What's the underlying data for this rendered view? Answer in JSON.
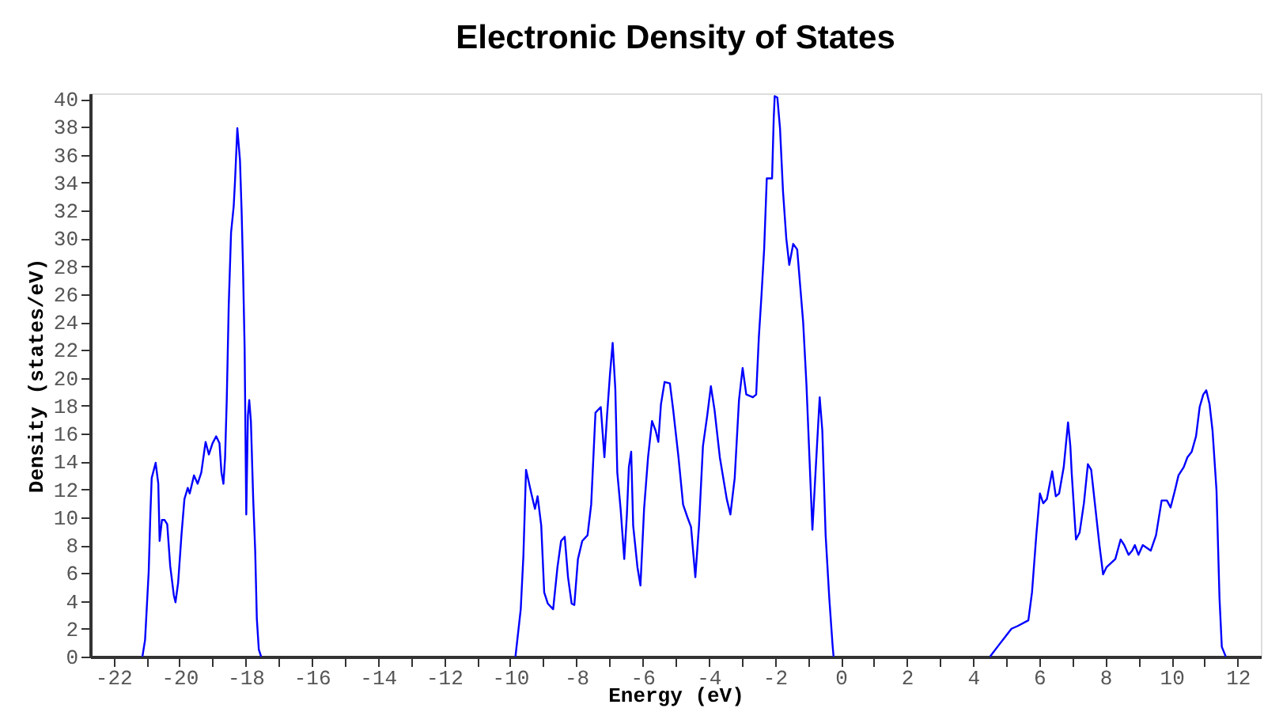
{
  "chart_data": {
    "type": "line",
    "title": "Electronic Density of States",
    "xlabel": "Energy (eV)",
    "ylabel": "Density (states/eV)",
    "xlim": [
      -22.7,
      12.7
    ],
    "ylim": [
      0,
      40.4
    ],
    "xticks": [
      -22,
      {
        "value": -21,
        "label": null
      },
      -20,
      {
        "value": -19,
        "label": null
      },
      -18,
      {
        "value": -17,
        "label": null
      },
      -16,
      {
        "value": -15,
        "label": null
      },
      -14,
      {
        "value": -13,
        "label": null
      },
      -12,
      {
        "value": -11,
        "label": null
      },
      -10,
      {
        "value": -9,
        "label": null
      },
      -8,
      {
        "value": -7,
        "label": null
      },
      -6,
      {
        "value": -5,
        "label": null
      },
      -4,
      {
        "value": -3,
        "label": null
      },
      -2,
      {
        "value": -1,
        "label": null
      },
      0,
      {
        "value": 1,
        "label": null
      },
      2,
      {
        "value": 3,
        "label": null
      },
      4,
      {
        "value": 5,
        "label": null
      },
      6,
      {
        "value": 7,
        "label": null
      },
      8,
      {
        "value": 9,
        "label": null
      },
      10,
      {
        "value": 11,
        "label": null
      },
      12
    ],
    "yticks": [
      0,
      2,
      4,
      6,
      8,
      10,
      12,
      14,
      16,
      18,
      20,
      22,
      24,
      26,
      28,
      30,
      32,
      34,
      36,
      38,
      40
    ],
    "grid": false,
    "legend": false,
    "marker": "none",
    "line_style": "solid",
    "series": [
      {
        "color": "#0000ff",
        "x": [
          -21.12,
          -21.04,
          -20.93,
          -20.88,
          -20.84,
          -20.72,
          -20.64,
          -20.6,
          -20.53,
          -20.45,
          -20.37,
          -20.28,
          -20.17,
          -20.12,
          -20.04,
          -19.94,
          -19.85,
          -19.75,
          -19.69,
          -19.56,
          -19.45,
          -19.34,
          -19.21,
          -19.11,
          -19.0,
          -18.89,
          -18.79,
          -18.73,
          -18.67,
          -18.62,
          -18.57,
          -18.51,
          -18.44,
          -18.36,
          -18.32,
          -18.25,
          -18.17,
          -18.12,
          -18.08,
          -18.03,
          -17.98,
          -17.93,
          -17.89,
          -17.84,
          -17.77,
          -17.71,
          -17.66,
          -17.6,
          -17.53,
          -14,
          -9.84,
          -9.68,
          -9.6,
          -9.52,
          -9.36,
          -9.25,
          -9.17,
          -9.06,
          -8.97,
          -8.86,
          -8.7,
          -8.57,
          -8.46,
          -8.35,
          -8.25,
          -8.14,
          -8.06,
          -7.95,
          -7.82,
          -7.66,
          -7.55,
          -7.42,
          -7.26,
          -7.15,
          -7.07,
          -6.98,
          -6.9,
          -6.82,
          -6.76,
          -6.66,
          -6.55,
          -6.47,
          -6.41,
          -6.34,
          -6.28,
          -6.15,
          -6.06,
          -5.95,
          -5.83,
          -5.71,
          -5.6,
          -5.52,
          -5.44,
          -5.33,
          -5.17,
          -5.07,
          -4.91,
          -4.77,
          -4.64,
          -4.53,
          -4.4,
          -4.29,
          -4.17,
          -4.04,
          -3.93,
          -3.82,
          -3.66,
          -3.45,
          -3.34,
          -3.21,
          -3.08,
          -2.97,
          -2.86,
          -2.66,
          -2.56,
          -2.48,
          -2.4,
          -2.32,
          -2.24,
          -2.08,
          -2.03,
          -2.0,
          -1.92,
          -1.84,
          -1.75,
          -1.65,
          -1.56,
          -1.44,
          -1.32,
          -1.23,
          -1.14,
          -1.04,
          -0.95,
          -0.86,
          -0.75,
          -0.64,
          -0.56,
          -0.46,
          -0.35,
          -0.25,
          -0.22,
          2,
          4.51,
          4.8,
          5.16,
          5.35,
          5.67,
          5.78,
          5.91,
          6.02,
          6.12,
          6.23,
          6.39,
          6.5,
          6.6,
          6.74,
          6.87,
          6.94,
          6.98,
          7.11,
          7.22,
          7.35,
          7.47,
          7.57,
          7.69,
          7.82,
          7.93,
          8.03,
          8.3,
          8.46,
          8.57,
          8.7,
          8.81,
          8.89,
          9.0,
          9.13,
          9.37,
          9.53,
          9.7,
          9.86,
          9.97,
          10.1,
          10.21,
          10.37,
          10.48,
          10.61,
          10.74,
          10.85,
          10.96,
          11.05,
          11.15,
          11.24,
          11.36,
          11.45,
          11.52,
          11.64
        ],
        "values": [
          0,
          1.2,
          6.1,
          10.2,
          12.8,
          13.9,
          12.4,
          8.3,
          9.8,
          9.8,
          9.5,
          6.5,
          4.4,
          3.9,
          5.3,
          8.7,
          11.3,
          12.1,
          11.7,
          13.0,
          12.4,
          13.2,
          15.4,
          14.5,
          15.3,
          15.8,
          15.3,
          13.2,
          12.4,
          14.3,
          18.4,
          25.2,
          30.4,
          32.3,
          34.1,
          37.9,
          35.6,
          31.9,
          28.1,
          22.2,
          10.2,
          17.3,
          18.4,
          16.9,
          11.3,
          7.6,
          2.7,
          0.5,
          0,
          null,
          0,
          3.4,
          7.2,
          13.4,
          11.7,
          10.6,
          11.5,
          9.4,
          4.6,
          3.8,
          3.4,
          6.4,
          8.3,
          8.6,
          5.7,
          3.8,
          3.7,
          7.0,
          8.3,
          8.7,
          10.9,
          17.5,
          17.9,
          14.3,
          17.3,
          20.3,
          22.5,
          19.2,
          13.2,
          10.6,
          7.0,
          10.2,
          13.6,
          14.7,
          9.4,
          6.4,
          5.1,
          10.6,
          14.3,
          16.9,
          16.2,
          15.4,
          18.1,
          19.7,
          19.6,
          17.7,
          14.3,
          10.9,
          10.0,
          9.3,
          5.7,
          9.4,
          15.1,
          17.3,
          19.4,
          17.7,
          14.3,
          11.3,
          10.2,
          12.8,
          18.4,
          20.7,
          18.8,
          18.6,
          18.8,
          22.9,
          25.9,
          29.2,
          34.3,
          34.3,
          38.6,
          40.2,
          40.1,
          37.9,
          33.4,
          30.0,
          28.1,
          29.6,
          29.2,
          26.6,
          24.0,
          19.5,
          14.3,
          9.1,
          13.9,
          18.6,
          16.2,
          8.7,
          4.2,
          0.8,
          0,
          null,
          0,
          0.9,
          2.0,
          2.2,
          2.6,
          4.6,
          8.7,
          11.7,
          11.0,
          11.3,
          13.3,
          11.5,
          11.7,
          13.6,
          16.8,
          15.1,
          13.2,
          8.4,
          8.9,
          11.0,
          13.8,
          13.4,
          10.8,
          8.0,
          5.9,
          6.4,
          7.0,
          8.4,
          8.0,
          7.3,
          7.6,
          8.0,
          7.3,
          8.0,
          7.6,
          8.7,
          11.2,
          11.2,
          10.7,
          11.9,
          13.0,
          13.6,
          14.3,
          14.7,
          15.8,
          17.9,
          18.8,
          19.1,
          18.1,
          16.2,
          11.9,
          4.2,
          0.7,
          0
        ]
      }
    ]
  }
}
